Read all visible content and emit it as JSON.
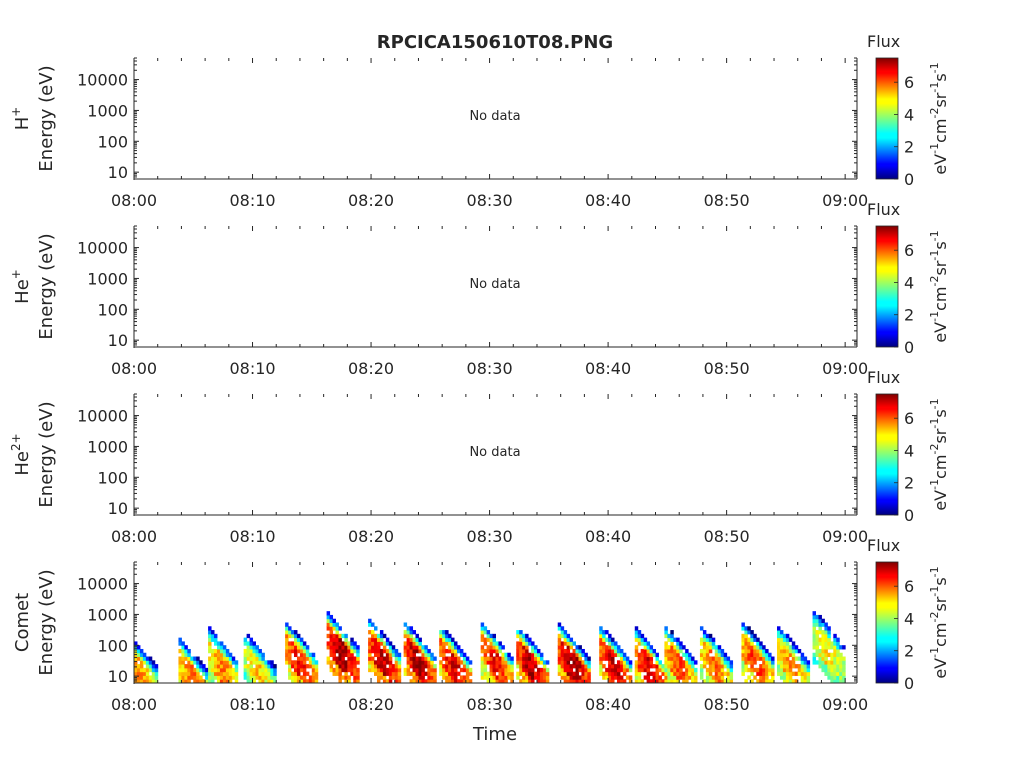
{
  "title": "RPCICA150610T08.PNG",
  "colorbar": {
    "label": "Flux",
    "units_base": [
      "eV",
      "cm",
      "sr",
      "s"
    ],
    "units_exp": [
      "-1",
      "-2",
      "-1",
      "-1"
    ],
    "ticks": [
      "0",
      "2",
      "4",
      "6"
    ],
    "range": [
      0,
      7.5
    ],
    "colormap": "jet"
  },
  "x_axis": {
    "label": "Time",
    "tick_labels": [
      "08:00",
      "08:10",
      "08:20",
      "08:30",
      "08:40",
      "08:50",
      "09:00"
    ],
    "range_minutes": [
      0,
      61
    ]
  },
  "y_axis": {
    "label": "Energy (eV)",
    "tick_labels": [
      "10",
      "100",
      "1000",
      "10000"
    ],
    "scale": "log",
    "range": [
      6,
      50000
    ]
  },
  "chart_data": [
    {
      "type": "heatmap",
      "species": "H",
      "species_sup": "+",
      "message": "No data"
    },
    {
      "type": "heatmap",
      "species": "He",
      "species_sup": "+",
      "message": "No data"
    },
    {
      "type": "heatmap",
      "species": "He",
      "species_sup": "2+",
      "message": "No data"
    },
    {
      "type": "heatmap",
      "species": "Comet",
      "species_sup": "",
      "message": "",
      "x_unit": "minutes after 08:00",
      "y_unit": "eV",
      "bursts": [
        {
          "t": 0.5,
          "emax": 200,
          "peak": 5.5
        },
        {
          "t": 5.0,
          "emax": 120,
          "peak": 5.8
        },
        {
          "t": 7.5,
          "emax": 250,
          "peak": 5.6
        },
        {
          "t": 10.5,
          "emax": 200,
          "peak": 5.0
        },
        {
          "t": 14.0,
          "emax": 400,
          "peak": 6.5
        },
        {
          "t": 17.5,
          "emax": 800,
          "peak": 7.3
        },
        {
          "t": 21.0,
          "emax": 500,
          "peak": 7.0
        },
        {
          "t": 24.0,
          "emax": 400,
          "peak": 7.2
        },
        {
          "t": 27.0,
          "emax": 300,
          "peak": 6.8
        },
        {
          "t": 30.5,
          "emax": 400,
          "peak": 6.5
        },
        {
          "t": 33.5,
          "emax": 300,
          "peak": 7.0
        },
        {
          "t": 37.0,
          "emax": 350,
          "peak": 7.3
        },
        {
          "t": 40.5,
          "emax": 300,
          "peak": 7.0
        },
        {
          "t": 43.5,
          "emax": 250,
          "peak": 6.8
        },
        {
          "t": 46.0,
          "emax": 300,
          "peak": 6.0
        },
        {
          "t": 49.0,
          "emax": 300,
          "peak": 5.8
        },
        {
          "t": 52.5,
          "emax": 400,
          "peak": 6.2
        },
        {
          "t": 55.5,
          "emax": 300,
          "peak": 5.5
        },
        {
          "t": 58.5,
          "emax": 1000,
          "peak": 4.8
        }
      ]
    }
  ]
}
